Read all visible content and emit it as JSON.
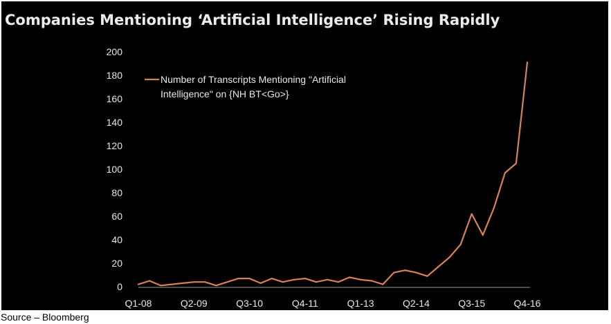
{
  "source_note": "Source – Bloomberg",
  "chart_data": {
    "type": "line",
    "title": "Companies Mentioning ‘Artificial Intelligence’ Rising Rapidly",
    "xlabel": "",
    "ylabel": "",
    "ylim": [
      0,
      200
    ],
    "yticks": [
      0,
      20,
      40,
      60,
      80,
      100,
      120,
      140,
      160,
      180,
      200
    ],
    "x": [
      "Q1-08",
      "Q2-08",
      "Q3-08",
      "Q4-08",
      "Q1-09",
      "Q2-09",
      "Q3-09",
      "Q4-09",
      "Q1-10",
      "Q2-10",
      "Q3-10",
      "Q4-10",
      "Q1-11",
      "Q2-11",
      "Q3-11",
      "Q4-11",
      "Q1-12",
      "Q2-12",
      "Q3-12",
      "Q4-12",
      "Q1-13",
      "Q2-13",
      "Q3-13",
      "Q4-13",
      "Q1-14",
      "Q2-14",
      "Q3-14",
      "Q4-14",
      "Q1-15",
      "Q2-15",
      "Q3-15",
      "Q4-15",
      "Q1-16",
      "Q2-16",
      "Q3-16",
      "Q4-16"
    ],
    "xtick_labels_shown": [
      "Q1-08",
      "Q2-09",
      "Q3-10",
      "Q4-11",
      "Q1-13",
      "Q2-14",
      "Q3-15",
      "Q4-16"
    ],
    "grid": false,
    "legend_position": "top-left",
    "series": [
      {
        "name": "Number of Transcripts Mentioning \"Artificial Intelligence\" on {NH BT<Go>}",
        "color": "#d9825a",
        "values": [
          2,
          5,
          1,
          2,
          3,
          4,
          4,
          1,
          4,
          7,
          7,
          3,
          7,
          4,
          6,
          7,
          4,
          6,
          4,
          8,
          6,
          5,
          2,
          12,
          14,
          12,
          9,
          17,
          25,
          36,
          62,
          44,
          67,
          97,
          105,
          191
        ]
      }
    ]
  }
}
